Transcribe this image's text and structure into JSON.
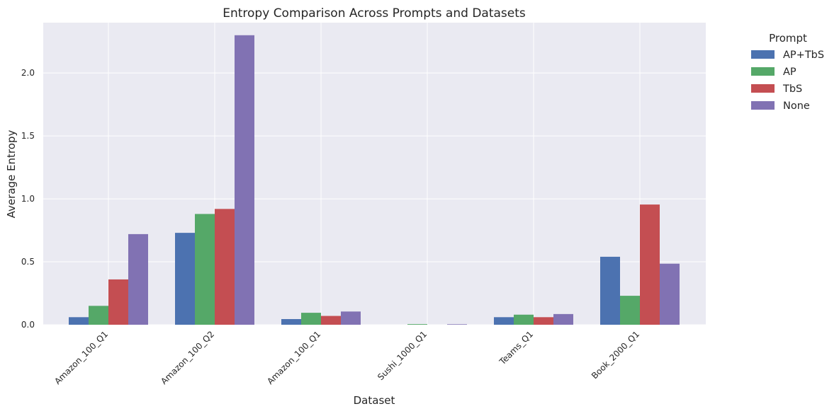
{
  "chart_data": {
    "type": "bar",
    "title": "Entropy Comparison Across Prompts and Datasets",
    "xlabel": "Dataset",
    "ylabel": "Average Entropy",
    "categories": [
      "Amazon_100_Q1",
      "Amazon_100_Q2",
      "Amazon_100_Q1",
      "Sushi_1000_Q1",
      "Teams_Q1",
      "Book_2000_Q1"
    ],
    "y_ticks": [
      "0.0",
      "0.5",
      "1.0",
      "1.5",
      "2.0"
    ],
    "ylim": [
      0,
      2.4
    ],
    "grid": true,
    "legend": {
      "title": "Prompt",
      "placement": "outside-upper-right"
    },
    "series": [
      {
        "name": "AP+TbS",
        "color": "#4c72b0",
        "values": [
          0.06,
          0.73,
          0.045,
          0.0,
          0.06,
          0.54
        ]
      },
      {
        "name": "AP",
        "color": "#55a868",
        "values": [
          0.15,
          0.88,
          0.095,
          0.005,
          0.08,
          0.23
        ]
      },
      {
        "name": "TbS",
        "color": "#c44e52",
        "values": [
          0.36,
          0.92,
          0.07,
          0.0,
          0.06,
          0.955
        ]
      },
      {
        "name": "None",
        "color": "#8172b3",
        "values": [
          0.72,
          2.3,
          0.105,
          0.004,
          0.085,
          0.485
        ]
      }
    ]
  }
}
